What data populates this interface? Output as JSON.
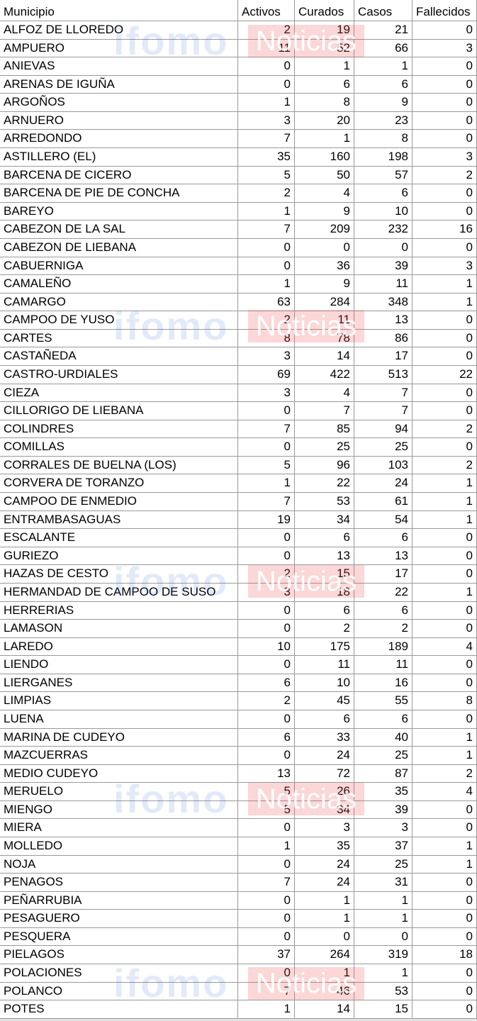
{
  "table": {
    "header": [
      "Municipio",
      "Activos",
      "Curados",
      "Casos",
      "Fallecidos"
    ],
    "rows": [
      [
        "ALFOZ DE LLOREDO",
        2,
        19,
        21,
        0
      ],
      [
        "AMPUERO",
        11,
        52,
        66,
        3
      ],
      [
        "ANIEVAS",
        0,
        1,
        1,
        0
      ],
      [
        "ARENAS DE IGUÑA",
        0,
        6,
        6,
        0
      ],
      [
        "ARGOÑOS",
        1,
        8,
        9,
        0
      ],
      [
        "ARNUERO",
        3,
        20,
        23,
        0
      ],
      [
        "ARREDONDO",
        7,
        1,
        8,
        0
      ],
      [
        "ASTILLERO (EL)",
        35,
        160,
        198,
        3
      ],
      [
        "BARCENA DE CICERO",
        5,
        50,
        57,
        2
      ],
      [
        "BARCENA DE PIE DE CONCHA",
        2,
        4,
        6,
        0
      ],
      [
        "BAREYO",
        1,
        9,
        10,
        0
      ],
      [
        "CABEZON DE LA SAL",
        7,
        209,
        232,
        16
      ],
      [
        "CABEZON DE LIEBANA",
        0,
        0,
        0,
        0
      ],
      [
        "CABUERNIGA",
        0,
        36,
        39,
        3
      ],
      [
        "CAMALEÑO",
        1,
        9,
        11,
        1
      ],
      [
        "CAMARGO",
        63,
        284,
        348,
        1
      ],
      [
        "CAMPOO DE YUSO",
        2,
        11,
        13,
        0
      ],
      [
        "CARTES",
        8,
        78,
        86,
        0
      ],
      [
        "CASTAÑEDA",
        3,
        14,
        17,
        0
      ],
      [
        "CASTRO-URDIALES",
        69,
        422,
        513,
        22
      ],
      [
        "CIEZA",
        3,
        4,
        7,
        0
      ],
      [
        "CILLORIGO DE LIEBANA",
        0,
        7,
        7,
        0
      ],
      [
        "COLINDRES",
        7,
        85,
        94,
        2
      ],
      [
        "COMILLAS",
        0,
        25,
        25,
        0
      ],
      [
        "CORRALES DE BUELNA (LOS)",
        5,
        96,
        103,
        2
      ],
      [
        "CORVERA DE TORANZO",
        1,
        22,
        24,
        1
      ],
      [
        "CAMPOO DE ENMEDIO",
        7,
        53,
        61,
        1
      ],
      [
        "ENTRAMBASAGUAS",
        19,
        34,
        54,
        1
      ],
      [
        "ESCALANTE",
        0,
        6,
        6,
        0
      ],
      [
        "GURIEZO",
        0,
        13,
        13,
        0
      ],
      [
        "HAZAS DE CESTO",
        2,
        15,
        17,
        0
      ],
      [
        "HERMANDAD DE CAMPOO DE SUSO",
        3,
        18,
        22,
        1
      ],
      [
        "HERRERIAS",
        0,
        6,
        6,
        0
      ],
      [
        "LAMASON",
        0,
        2,
        2,
        0
      ],
      [
        "LAREDO",
        10,
        175,
        189,
        4
      ],
      [
        "LIENDO",
        0,
        11,
        11,
        0
      ],
      [
        "LIERGANES",
        6,
        10,
        16,
        0
      ],
      [
        "LIMPIAS",
        2,
        45,
        55,
        8
      ],
      [
        "LUENA",
        0,
        6,
        6,
        0
      ],
      [
        "MARINA DE CUDEYO",
        6,
        33,
        40,
        1
      ],
      [
        "MAZCUERRAS",
        0,
        24,
        25,
        1
      ],
      [
        "MEDIO CUDEYO",
        13,
        72,
        87,
        2
      ],
      [
        "MERUELO",
        5,
        26,
        35,
        4
      ],
      [
        "MIENGO",
        5,
        34,
        39,
        0
      ],
      [
        "MIERA",
        0,
        3,
        3,
        0
      ],
      [
        "MOLLEDO",
        1,
        35,
        37,
        1
      ],
      [
        "NOJA",
        0,
        24,
        25,
        1
      ],
      [
        "PENAGOS",
        7,
        24,
        31,
        0
      ],
      [
        "PEÑARRUBIA",
        0,
        1,
        1,
        0
      ],
      [
        "PESAGUERO",
        0,
        1,
        1,
        0
      ],
      [
        "PESQUERA",
        0,
        0,
        0,
        0
      ],
      [
        "PIELAGOS",
        37,
        264,
        319,
        18
      ],
      [
        "POLACIONES",
        0,
        1,
        1,
        0
      ],
      [
        "POLANCO",
        7,
        46,
        53,
        0
      ],
      [
        "POTES",
        1,
        14,
        15,
        0
      ]
    ]
  },
  "watermark": {
    "brand": "ifomo",
    "name": "Noticias"
  }
}
